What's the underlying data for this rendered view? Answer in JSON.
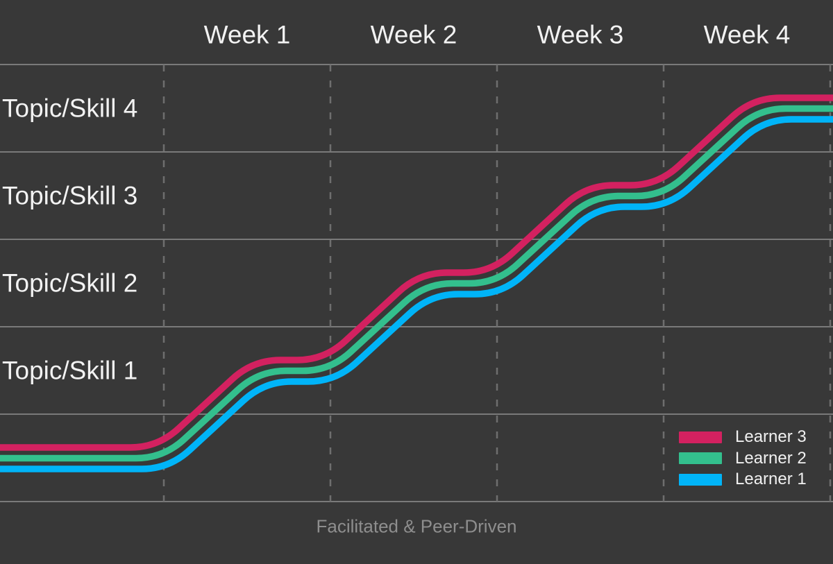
{
  "colors": {
    "background": "#383838",
    "grid_solid": "#7A7A7A",
    "grid_dashed": "#6E6E6E",
    "axis_text": "#F2F2F2",
    "caption_text": "#8E8E8E",
    "legend_text": "#F0F0F0"
  },
  "chart_data": {
    "type": "line",
    "subtype": "smoothed-step-progression",
    "title": "",
    "caption": "Facilitated & Peer-Driven",
    "x_axis": {
      "position": "top",
      "labels": [
        "Week 1",
        "Week 2",
        "Week 3",
        "Week 4"
      ]
    },
    "y_axis": {
      "position": "left",
      "labels_top_to_bottom": [
        "Topic/Skill 4",
        "Topic/Skill 3",
        "Topic/Skill 2",
        "Topic/Skill 1"
      ]
    },
    "grid": {
      "horizontal_style": "solid",
      "vertical_style": "dashed",
      "rows": 5,
      "columns": 4
    },
    "series": [
      {
        "name": "Learner 3",
        "color": "#D32160",
        "topic_level_by_week": [
          0,
          1,
          2,
          3,
          4
        ]
      },
      {
        "name": "Learner 2",
        "color": "#33BF8D",
        "topic_level_by_week": [
          0,
          1,
          2,
          3,
          4
        ]
      },
      {
        "name": "Learner 1",
        "color": "#00B4F8",
        "topic_level_by_week": [
          0,
          1,
          2,
          3,
          4
        ]
      }
    ],
    "legend": {
      "position": "bottom-right",
      "entries_top_to_bottom": [
        "Learner 3",
        "Learner 2",
        "Learner 1"
      ]
    }
  }
}
